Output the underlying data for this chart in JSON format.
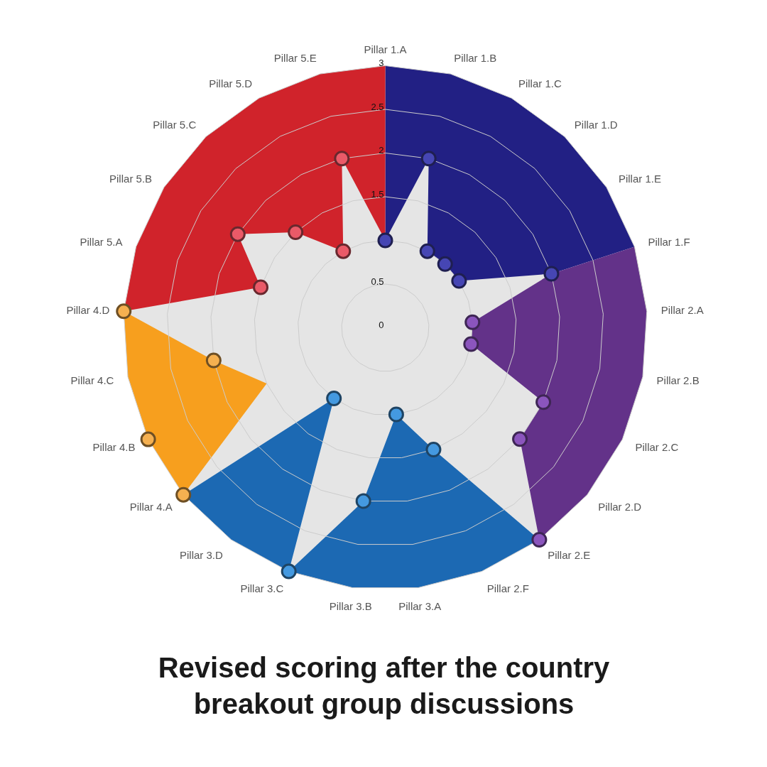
{
  "chart_data": {
    "type": "radar",
    "title": "Revised scoring after the country breakout group discussions",
    "categories": [
      "Pillar 1.A",
      "Pillar 1.B",
      "Pillar 1.C",
      "Pillar 1.D",
      "Pillar 1.E",
      "Pillar 1.F",
      "Pillar 2.A",
      "Pillar 2.B",
      "Pillar 2.C",
      "Pillar 2.D",
      "Pillar 2.E",
      "Pillar 2.F",
      "Pillar 3.A",
      "Pillar 3.B",
      "Pillar 3.C",
      "Pillar 3.D",
      "Pillar 4.A",
      "Pillar 4.B",
      "Pillar 4.C",
      "Pillar 4.D",
      "Pillar 5.A",
      "Pillar 5.B",
      "Pillar 5.C",
      "Pillar 5.D",
      "Pillar 5.E"
    ],
    "ylim": [
      0,
      3
    ],
    "yticks": [
      0,
      0.5,
      1.5,
      2,
      2.5,
      3
    ],
    "grid": true,
    "series": [
      {
        "type": "area",
        "color": "#222084",
        "values": [
          3,
          3,
          3,
          3,
          3,
          3,
          null,
          null,
          null,
          null,
          null,
          null,
          null,
          null,
          null,
          null,
          null,
          null,
          null,
          null,
          null,
          null,
          null,
          null,
          null
        ]
      },
      {
        "type": "area",
        "color": "#633289",
        "values": [
          null,
          null,
          null,
          null,
          null,
          3,
          3,
          3,
          3,
          3,
          3,
          null,
          null,
          null,
          null,
          null,
          null,
          null,
          null,
          null,
          null,
          null,
          null,
          null,
          null
        ]
      },
      {
        "type": "area",
        "color": "#1c69b3",
        "values": [
          null,
          null,
          null,
          null,
          null,
          null,
          null,
          null,
          null,
          null,
          3,
          3,
          3,
          3,
          3,
          3,
          3,
          null,
          null,
          null,
          null,
          null,
          null,
          null,
          null
        ]
      },
      {
        "type": "area",
        "color": "#f79f1e",
        "values": [
          null,
          null,
          null,
          null,
          null,
          null,
          null,
          null,
          null,
          null,
          null,
          null,
          null,
          null,
          null,
          null,
          3,
          3,
          3,
          3,
          null,
          null,
          null,
          null,
          null
        ],
        "colors": [
          null,
          null,
          null,
          null,
          null,
          null,
          null,
          null,
          null,
          null,
          null,
          null,
          null,
          null,
          null,
          null,
          null,
          "#f5b050",
          null,
          null,
          null,
          null,
          null,
          null,
          null
        ]
      },
      {
        "type": "area",
        "color": "#d0232b",
        "values": [
          3,
          null,
          null,
          null,
          null,
          null,
          null,
          null,
          null,
          null,
          null,
          null,
          null,
          null,
          null,
          null,
          null,
          null,
          null,
          3,
          3,
          3,
          3,
          3,
          3
        ]
      },
      {
        "type": "area",
        "color": "#e5e5e5",
        "values": [
          1,
          2,
          1,
          1,
          1,
          2,
          1,
          1,
          2,
          2,
          3,
          1.5,
          1,
          2,
          3,
          1,
          3,
          1.5,
          2,
          3,
          1.5,
          2,
          1.5,
          1,
          2
        ],
        "colors": [
          "#4646b4",
          "#4646b4",
          "#4646b4",
          "#4646b4",
          "#4646b4",
          "#4646b4",
          "#8b55bd",
          "#8b55bd",
          "#8b55bd",
          "#8b55bd",
          "#8b55bd",
          "#4499e0",
          "#4499e0",
          "#4499e0",
          "#4499e0",
          "#4499e0",
          "#f5b050",
          null,
          "#f5b050",
          "#f5b050",
          "#ea5a68",
          "#ea5a68",
          "#ea5a68",
          "#ea5a68",
          "#ea5a68"
        ]
      }
    ]
  }
}
